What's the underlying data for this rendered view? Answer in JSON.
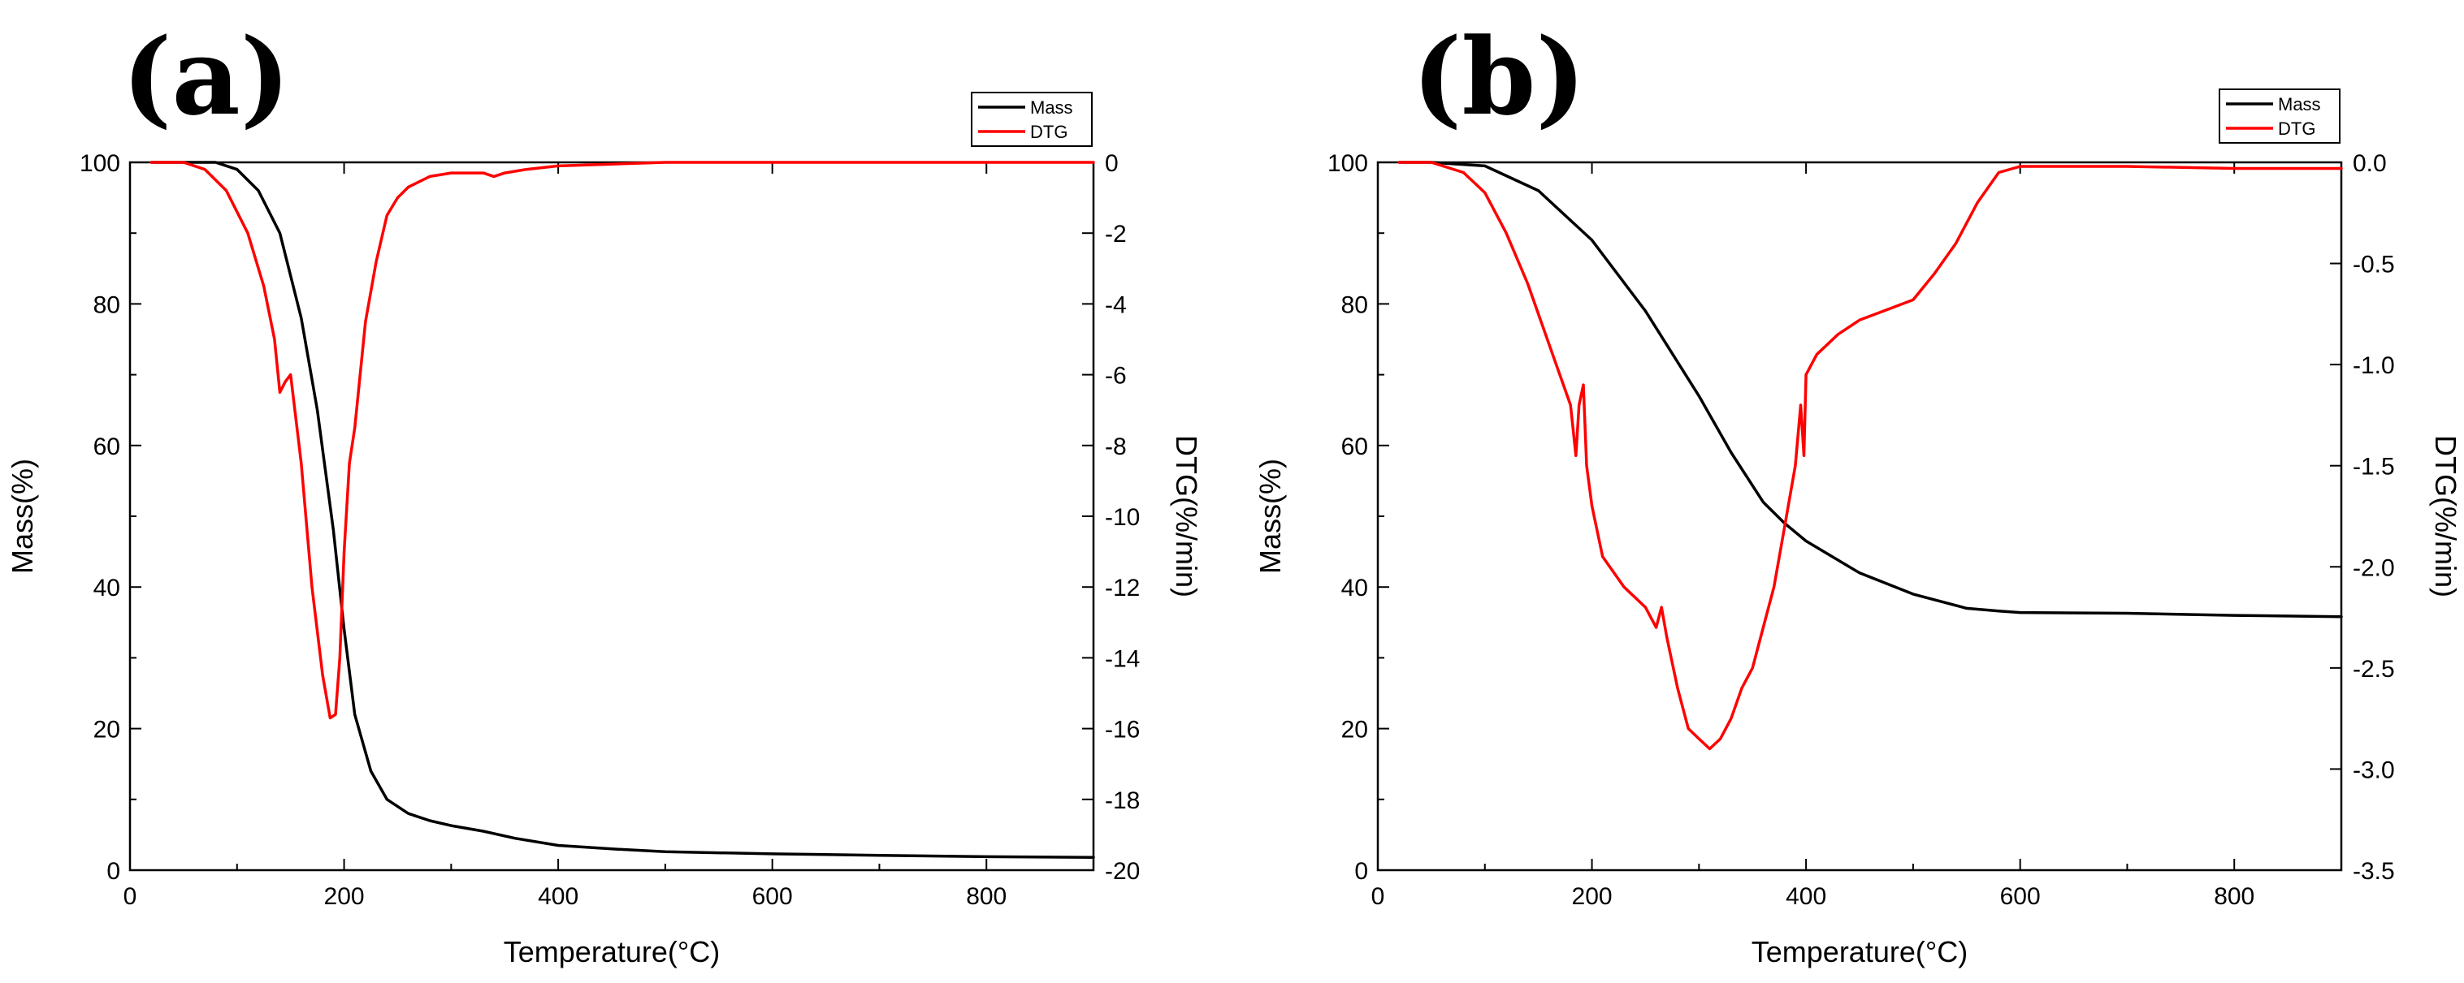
{
  "chart_data": [
    {
      "type": "line",
      "panel_label": "(a)",
      "xlabel": "Temperature(°C)",
      "ylabel": "Mass(%)",
      "y2label": "DTG(%/min)",
      "xlim": [
        0,
        900
      ],
      "ylim": [
        0,
        100
      ],
      "y2lim": [
        -20,
        0
      ],
      "xticks": [
        0,
        200,
        400,
        600,
        800
      ],
      "xtick_labels": [
        "0",
        "200",
        "400",
        "600",
        "800"
      ],
      "yticks": [
        0,
        20,
        40,
        60,
        80,
        100
      ],
      "ytick_labels": [
        "0",
        "20",
        "40",
        "60",
        "80",
        "100"
      ],
      "y2ticks": [
        0,
        -2,
        -4,
        -6,
        -8,
        -10,
        -12,
        -14,
        -16,
        -18,
        -20
      ],
      "y2tick_labels": [
        "0",
        "-2",
        "-4",
        "-6",
        "-8",
        "-10",
        "-12",
        "-14",
        "-16",
        "-18",
        "-20"
      ],
      "legend": [
        "Mass",
        "DTG"
      ],
      "legend_position": "top-right",
      "series": [
        {
          "name": "Mass",
          "color": "#000000",
          "axis": "left",
          "x": [
            20,
            50,
            80,
            100,
            120,
            140,
            160,
            175,
            190,
            200,
            210,
            225,
            240,
            260,
            280,
            300,
            330,
            360,
            400,
            450,
            500,
            600,
            700,
            800,
            900
          ],
          "y": [
            100,
            100,
            100,
            99,
            96,
            90,
            78,
            65,
            48,
            34,
            22,
            14,
            10,
            8,
            7,
            6.3,
            5.5,
            4.5,
            3.5,
            3,
            2.6,
            2.3,
            2.1,
            1.9,
            1.8
          ]
        },
        {
          "name": "DTG",
          "color": "#ff0000",
          "axis": "right",
          "x": [
            20,
            50,
            70,
            90,
            110,
            125,
            135,
            140,
            145,
            150,
            160,
            170,
            180,
            187,
            192,
            196,
            200,
            205,
            210,
            215,
            220,
            230,
            240,
            250,
            260,
            280,
            300,
            330,
            340,
            350,
            370,
            400,
            500,
            600,
            700,
            800,
            900
          ],
          "y": [
            0,
            0,
            -0.2,
            -0.8,
            -2.0,
            -3.5,
            -5.0,
            -6.5,
            -6.2,
            -6.0,
            -8.5,
            -12.0,
            -14.5,
            -15.7,
            -15.6,
            -14.0,
            -11.0,
            -8.5,
            -7.5,
            -6.0,
            -4.5,
            -2.8,
            -1.5,
            -1.0,
            -0.7,
            -0.4,
            -0.3,
            -0.3,
            -0.4,
            -0.3,
            -0.2,
            -0.1,
            0,
            0,
            0,
            0,
            0
          ]
        }
      ]
    },
    {
      "type": "line",
      "panel_label": "(b)",
      "xlabel": "Temperature(°C)",
      "ylabel": "Mass(%)",
      "y2label": "DTG(%/min)",
      "xlim": [
        0,
        900
      ],
      "ylim": [
        0,
        100
      ],
      "y2lim": [
        -3.5,
        0
      ],
      "xticks": [
        0,
        200,
        400,
        600,
        800
      ],
      "xtick_labels": [
        "0",
        "200",
        "400",
        "600",
        "800"
      ],
      "yticks": [
        0,
        20,
        40,
        60,
        80,
        100
      ],
      "ytick_labels": [
        "0",
        "20",
        "40",
        "60",
        "80",
        "100"
      ],
      "y2ticks": [
        0,
        -0.5,
        -1.0,
        -1.5,
        -2.0,
        -2.5,
        -3.0,
        -3.5
      ],
      "y2tick_labels": [
        "0.0",
        "-0.5",
        "-1.0",
        "-1.5",
        "-2.0",
        "-2.5",
        "-3.0",
        "-3.5"
      ],
      "legend": [
        "Mass",
        "DTG"
      ],
      "legend_position": "top-right",
      "series": [
        {
          "name": "Mass",
          "color": "#000000",
          "axis": "left",
          "x": [
            20,
            50,
            100,
            150,
            200,
            250,
            300,
            330,
            360,
            380,
            400,
            450,
            500,
            550,
            580,
            600,
            700,
            800,
            900
          ],
          "y": [
            100,
            100,
            99.5,
            96,
            89,
            79,
            67,
            59,
            52,
            49,
            46.5,
            42,
            39,
            37,
            36.6,
            36.4,
            36.3,
            36,
            35.8
          ],
          "note": "approximate"
        },
        {
          "name": "DTG",
          "color": "#ff0000",
          "axis": "right",
          "x": [
            20,
            50,
            80,
            100,
            120,
            140,
            160,
            180,
            185,
            188,
            192,
            195,
            200,
            210,
            230,
            250,
            260,
            265,
            270,
            280,
            290,
            300,
            310,
            320,
            330,
            340,
            350,
            360,
            370,
            380,
            390,
            395,
            398,
            400,
            410,
            430,
            450,
            480,
            500,
            520,
            540,
            560,
            580,
            600,
            700,
            800,
            900
          ],
          "y": [
            0,
            0,
            -0.05,
            -0.15,
            -0.35,
            -0.6,
            -0.9,
            -1.2,
            -1.45,
            -1.2,
            -1.1,
            -1.5,
            -1.7,
            -1.95,
            -2.1,
            -2.2,
            -2.3,
            -2.2,
            -2.35,
            -2.6,
            -2.8,
            -2.85,
            -2.9,
            -2.85,
            -2.75,
            -2.6,
            -2.5,
            -2.3,
            -2.1,
            -1.8,
            -1.5,
            -1.2,
            -1.45,
            -1.05,
            -0.95,
            -0.85,
            -0.78,
            -0.72,
            -0.68,
            -0.55,
            -0.4,
            -0.2,
            -0.05,
            -0.02,
            -0.02,
            -0.03,
            -0.03
          ]
        }
      ]
    }
  ]
}
